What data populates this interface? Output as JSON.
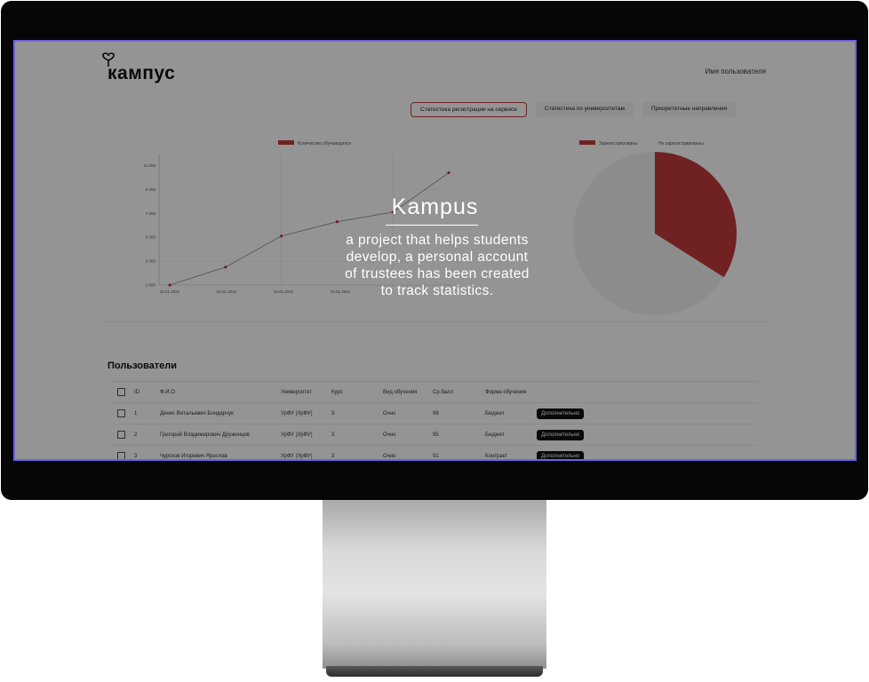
{
  "app": {
    "logo_text": "кампус",
    "user_name": "Имя пользователя"
  },
  "tabs": [
    {
      "label": "Статистика регистрации на сервисе",
      "active": true
    },
    {
      "label": "Статистика по университетам",
      "active": false
    },
    {
      "label": "Приоритетные направления",
      "active": false
    }
  ],
  "colors": {
    "accent": "#c23a3a",
    "promo_border": "#6b63e8",
    "button_dark": "#111111"
  },
  "chart_data": [
    {
      "type": "line",
      "legend": [
        "Количество обучающихся"
      ],
      "y_ticks": [
        "1 000",
        "3 000",
        "5 000",
        "7 000",
        "9 000",
        "11 000"
      ],
      "x_ticks": [
        "15.01.2021",
        "03.01.2021",
        "15.01.2021",
        "20.01.2021"
      ],
      "series": [
        {
          "name": "Количество обучающихся",
          "values": [
            {
              "x": 0,
              "y": 1000
            },
            {
              "x": 1,
              "y": 2500
            },
            {
              "x": 2,
              "y": 5100
            },
            {
              "x": 3,
              "y": 6300
            },
            {
              "x": 4,
              "y": 7100
            },
            {
              "x": 5,
              "y": 10400
            }
          ]
        }
      ],
      "ylim": [
        1000,
        12000
      ]
    },
    {
      "type": "pie",
      "legend": [
        "Зарегистрированы",
        "Не зарегистрированы"
      ],
      "values": [
        34,
        66
      ]
    }
  ],
  "users": {
    "title": "Пользователи",
    "columns": [
      "ID",
      "Ф.И.О",
      "Университет",
      "Курс",
      "Вид обучения",
      "Ср.балл",
      "Форма обучения"
    ],
    "rows": [
      {
        "id": "1",
        "name": "Денис Витальевич Бондарчук",
        "university": "УрФУ (УрФУ)",
        "course": "3",
        "study_type": "Очно",
        "gpa": "98",
        "form": "Бюджет",
        "button": "Дополнительно"
      },
      {
        "id": "2",
        "name": "Григорий Владимирович Дружинцев",
        "university": "УрФУ (УрФУ)",
        "course": "3",
        "study_type": "Очно",
        "gpa": "95",
        "form": "Бюджет",
        "button": "Дополнительно"
      },
      {
        "id": "3",
        "name": "Чурсков Игоревич Ярослав",
        "university": "УрФУ (УрФУ)",
        "course": "3",
        "study_type": "Очно",
        "gpa": "91",
        "form": "Контракт",
        "button": "Дополнительно"
      }
    ]
  },
  "promo": {
    "title": "Kampus",
    "lines": [
      "a project that helps students",
      "develop, a personal account",
      "of trustees has been created",
      "to track statistics."
    ]
  }
}
